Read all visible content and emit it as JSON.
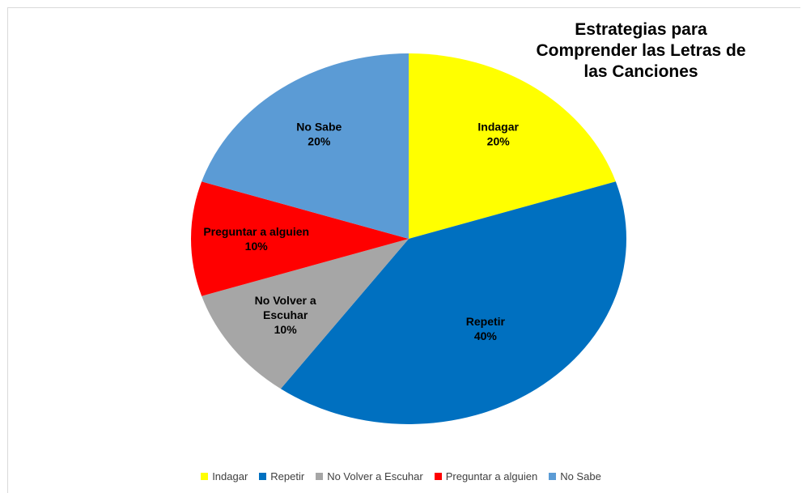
{
  "chart_data": {
    "type": "pie",
    "title_lines": [
      "Estrategias para",
      "Comprender las Letras de",
      "las Canciones"
    ],
    "categories": [
      "Indagar",
      "Repetir",
      "No Volver a Escuhar",
      "Preguntar a alguien",
      "No Sabe"
    ],
    "values": [
      20,
      40,
      10,
      10,
      20
    ],
    "percent_labels": [
      "20%",
      "40%",
      "10%",
      "10%",
      "20%"
    ],
    "slice_label_lines": [
      [
        "Indagar"
      ],
      [
        "Repetir"
      ],
      [
        "No Volver a",
        "Escuhar"
      ],
      [
        "Preguntar a alguien"
      ],
      [
        "No Sabe"
      ]
    ],
    "colors": [
      "#FFFF00",
      "#0070C0",
      "#A6A6A6",
      "#FF0000",
      "#5B9BD5"
    ],
    "legend_position": "bottom"
  }
}
